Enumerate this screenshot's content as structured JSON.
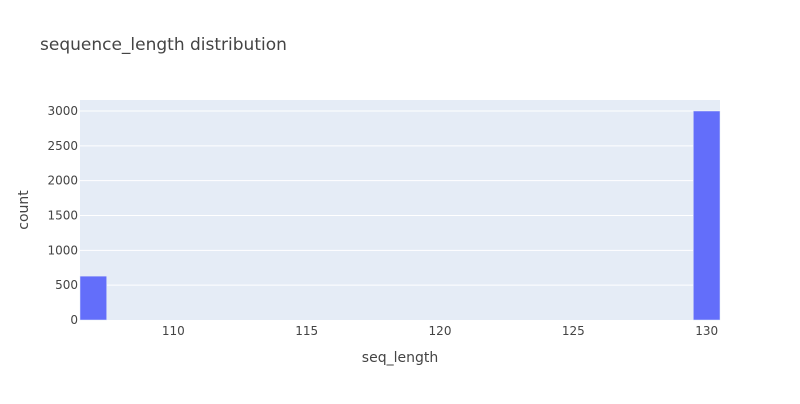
{
  "chart_data": {
    "type": "bar",
    "title": "sequence_length distribution",
    "xlabel": "seq_length",
    "ylabel": "count",
    "x_tick_labels": [
      "110",
      "115",
      "120",
      "125",
      "130"
    ],
    "y_tick_labels": [
      "0",
      "500",
      "1000",
      "1500",
      "2000",
      "2500",
      "3000"
    ],
    "xlim": [
      106.5,
      130.5
    ],
    "ylim": [
      0,
      3158
    ],
    "grid": true,
    "bin_width": 1,
    "bins": [
      {
        "x": 107,
        "count": 630
      },
      {
        "x": 130,
        "count": 3000
      }
    ],
    "colors": {
      "bar": "#636efa",
      "plot_background": "#e5ecf6",
      "grid": "#ffffff",
      "text": "#444444"
    }
  }
}
